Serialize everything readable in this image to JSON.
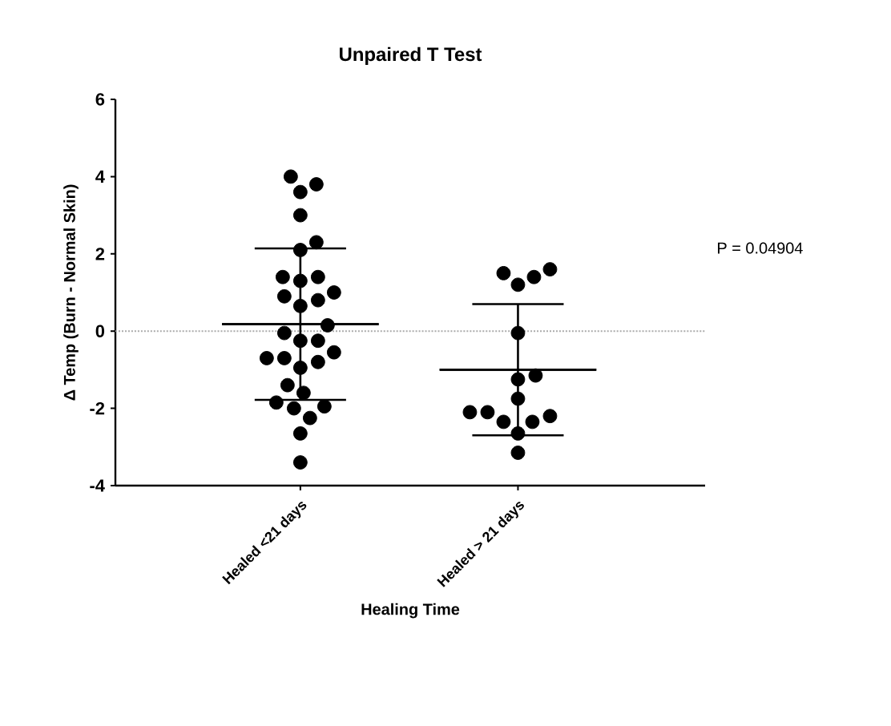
{
  "chart_data": {
    "type": "scatter",
    "title": "Unpaired T Test",
    "xlabel": "Healing Time",
    "ylabel": "Δ Temp (Burn - Normal Skin)",
    "categories": [
      "Healed <21 days",
      "Healed > 21 days"
    ],
    "ylim": [
      -4,
      6
    ],
    "yticks": [
      -4,
      -2,
      0,
      2,
      4,
      6
    ],
    "grid": false,
    "ref_lines": [
      {
        "axis": "y",
        "value": 0,
        "color": "#aaaaaa",
        "line_style": "dotted"
      }
    ],
    "annotations": [
      "P = 0.04904"
    ],
    "series": [
      {
        "color": "#000000",
        "x": [
          "Healed <21 days",
          "Healed <21 days",
          "Healed <21 days",
          "Healed <21 days",
          "Healed <21 days",
          "Healed <21 days",
          "Healed <21 days",
          "Healed <21 days",
          "Healed <21 days",
          "Healed <21 days",
          "Healed <21 days",
          "Healed <21 days",
          "Healed <21 days",
          "Healed <21 days",
          "Healed <21 days",
          "Healed <21 days",
          "Healed <21 days",
          "Healed <21 days",
          "Healed <21 days",
          "Healed <21 days",
          "Healed <21 days",
          "Healed <21 days",
          "Healed <21 days",
          "Healed <21 days",
          "Healed <21 days",
          "Healed <21 days",
          "Healed <21 days",
          "Healed <21 days",
          "Healed <21 days",
          "Healed <21 days",
          "Healed > 21 days",
          "Healed > 21 days",
          "Healed > 21 days",
          "Healed > 21 days",
          "Healed > 21 days",
          "Healed > 21 days",
          "Healed > 21 days",
          "Healed > 21 days",
          "Healed > 21 days",
          "Healed > 21 days",
          "Healed > 21 days",
          "Healed > 21 days",
          "Healed > 21 days",
          "Healed > 21 days",
          "Healed > 21 days"
        ],
        "values": [
          4.0,
          3.8,
          3.6,
          3.0,
          2.3,
          2.1,
          1.4,
          1.4,
          1.3,
          0.9,
          1.0,
          0.8,
          0.65,
          0.15,
          -0.05,
          -0.25,
          -0.25,
          -0.55,
          -0.7,
          -0.7,
          -0.8,
          -0.95,
          -1.4,
          -1.6,
          -1.85,
          -2.0,
          -1.95,
          -2.25,
          -2.65,
          -3.4,
          1.6,
          1.4,
          1.2,
          1.5,
          -0.05,
          -1.15,
          -1.25,
          -1.75,
          -2.1,
          -2.35,
          -2.35,
          -2.2,
          -2.1,
          -2.65,
          -3.15
        ]
      },
      {
        "type": "box",
        "color": "#000000",
        "boxes": [
          {
            "low": -1.78,
            "q1": 0.18,
            "median": 0.18,
            "q3": 0.18,
            "high": 2.14
          },
          {
            "low": -2.7,
            "q1": -1.0,
            "median": -1.0,
            "q3": -1.0,
            "high": 0.7
          }
        ]
      }
    ]
  }
}
